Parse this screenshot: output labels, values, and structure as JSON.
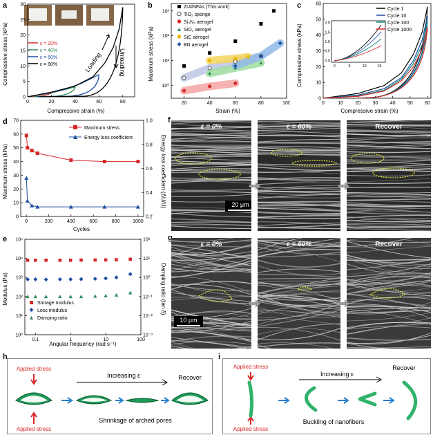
{
  "panels": {
    "a": {
      "letter": "a",
      "ylabel": "Compressive stress (kPa)",
      "xlabel": "Compressive strain (%)",
      "xticks": [
        "0",
        "20",
        "40",
        "60",
        "80"
      ],
      "yticks": [
        "0",
        "5",
        "10",
        "15",
        "20",
        "25",
        "30"
      ],
      "legend": [
        "ε = 20%",
        "ε = 40%",
        "ε = 60%",
        "ε = 80%"
      ],
      "loading_label": "Loading",
      "unloading_label": "Unloading"
    },
    "b": {
      "letter": "b",
      "ylabel": "Maximum stress (kPa)",
      "xlabel": "Strain (%)",
      "xticks": [
        "20",
        "40",
        "60",
        "80",
        "100"
      ],
      "yticks": [
        "10⁰",
        "10¹",
        "10²",
        "10³"
      ],
      "legend": [
        "ZrAlNFAs (This work)",
        "TiO₂ sponge",
        "Si₃N₄ aerogel",
        "SiO₂ aerogel",
        "SiC aerogel",
        "BN aerogel"
      ]
    },
    "c": {
      "letter": "c",
      "ylabel": "Compressive stress (kPa)",
      "xlabel": "Compressive strain (%)",
      "xticks": [
        "0",
        "10",
        "20",
        "30",
        "40",
        "50",
        "60"
      ],
      "yticks": [
        "0",
        "10",
        "20",
        "30",
        "40",
        "50",
        "60"
      ],
      "legend": [
        "Cycle 1",
        "Cycle 10",
        "Cycle 100",
        "Cycle 1000"
      ],
      "inset_xticks": [
        "0",
        "5",
        "10",
        "15"
      ],
      "inset_yticks": [
        "0.0",
        "0.5",
        "1.0",
        "1.5",
        "2.0"
      ]
    },
    "d": {
      "letter": "d",
      "ylabel": "Maximum stress (kPa)",
      "y2label": "Energy loss coefficient (ΔU/U)",
      "xlabel": "Cycles",
      "xticks": [
        "0",
        "200",
        "400",
        "600",
        "800",
        "1000"
      ],
      "yticks": [
        "0",
        "10",
        "20",
        "30",
        "40",
        "50",
        "60",
        "70"
      ],
      "y2ticks": [
        "0.2",
        "0.4",
        "0.6",
        "0.8",
        "1.0"
      ],
      "legend": [
        "Maximum stress",
        "Energy loss coefficient"
      ]
    },
    "e": {
      "letter": "e",
      "ylabel": "Modulus (Pa)",
      "y2label": "Damping ratio (tan δ)",
      "xlabel": "Angular frequency (rad s⁻¹)",
      "xticks": [
        "0.1",
        "1",
        "10",
        "100"
      ],
      "yticks": [
        "10⁰",
        "10¹",
        "10²",
        "10³",
        "10⁴",
        "10⁵"
      ],
      "y2ticks": [
        "10⁻³",
        "10⁻²",
        "10⁻¹",
        "10⁰",
        "10¹",
        "10²"
      ],
      "legend": [
        "Storage modulus",
        "Loss modulus",
        "Damping ratio"
      ]
    },
    "f": {
      "letter": "f",
      "labels": [
        "ε = 0%",
        "ε = 60%",
        "Recover"
      ],
      "scale": "20 μm"
    },
    "g": {
      "letter": "g",
      "labels": [
        "ε = 0%",
        "ε = 60%",
        "Recover"
      ],
      "scale": "10 μm"
    },
    "h": {
      "letter": "h",
      "applied_top": "Applied stress",
      "applied_bottom": "Applied stress",
      "increasing": "Increasing ε",
      "recover": "Recover",
      "caption": "Shrinkage of arched pores"
    },
    "i": {
      "letter": "i",
      "applied_top": "Applied stress",
      "applied_bottom": "Applied stress",
      "increasing": "Increasing ε",
      "recover": "Recover",
      "caption": "Buckling of nanofibers"
    }
  },
  "colors": {
    "red": "#d62728",
    "blue": "#1f4fa0",
    "green": "#2e8b57",
    "black": "#000000",
    "teal": "#138a80",
    "fiber_green": "#2fb36a"
  },
  "chart_data": [
    {
      "panel": "a",
      "type": "line",
      "xlabel": "Compressive strain (%)",
      "ylabel": "Compressive stress (kPa)",
      "xlim": [
        0,
        90
      ],
      "ylim": [
        0,
        30
      ],
      "series": [
        {
          "name": "ε = 20%",
          "x": [
            0,
            5,
            10,
            15,
            20
          ],
          "y": [
            0,
            0.3,
            0.6,
            0.9,
            1.2
          ]
        },
        {
          "name": "ε = 40%",
          "x": [
            0,
            10,
            20,
            30,
            40
          ],
          "y": [
            0,
            0.6,
            1.3,
            2.2,
            3.2
          ]
        },
        {
          "name": "ε = 60%",
          "x": [
            0,
            15,
            30,
            45,
            60
          ],
          "y": [
            0,
            1.0,
            2.3,
            4.3,
            7.2
          ]
        },
        {
          "name": "ε = 80%",
          "x": [
            0,
            20,
            40,
            55,
            65,
            72,
            77,
            80
          ],
          "y": [
            0,
            1.5,
            3.5,
            6.5,
            11,
            16,
            22,
            29
          ]
        }
      ]
    },
    {
      "panel": "b",
      "type": "scatter",
      "xlabel": "Strain (%)",
      "ylabel": "Maximum stress (kPa)",
      "xlim": [
        10,
        100
      ],
      "ylim_log": [
        0.3,
        2000
      ],
      "series": [
        {
          "name": "ZrAlNFAs (This work)",
          "x": [
            20,
            40,
            60,
            80,
            90
          ],
          "y": [
            6,
            20,
            60,
            300,
            1000
          ]
        },
        {
          "name": "TiO₂ sponge",
          "x": [
            20,
            40,
            60,
            80
          ],
          "y": [
            2,
            5,
            9,
            15
          ]
        },
        {
          "name": "Si₃N₄ aerogel",
          "x": [
            20,
            40,
            60
          ],
          "y": [
            0.6,
            0.9,
            1.2
          ]
        },
        {
          "name": "SiO₂ aerogel",
          "x": [
            40,
            60,
            80
          ],
          "y": [
            3,
            5,
            8
          ]
        },
        {
          "name": "SiC aerogel",
          "x": [
            40,
            60,
            70
          ],
          "y": [
            10,
            12,
            14
          ]
        },
        {
          "name": "BN aerogel",
          "x": [
            60,
            80,
            95
          ],
          "y": [
            6,
            15,
            50
          ]
        }
      ]
    },
    {
      "panel": "c",
      "type": "line",
      "xlabel": "Compressive strain (%)",
      "ylabel": "Compressive stress (kPa)",
      "xlim": [
        0,
        62
      ],
      "ylim": [
        0,
        60
      ],
      "series": [
        {
          "name": "Cycle 1",
          "x": [
            0,
            20,
            35,
            45,
            52,
            57,
            60
          ],
          "y": [
            0,
            3,
            8,
            16,
            28,
            42,
            58
          ]
        },
        {
          "name": "Cycle 10",
          "x": [
            0,
            20,
            35,
            45,
            52,
            57,
            60
          ],
          "y": [
            0,
            2,
            6,
            13,
            24,
            37,
            52
          ]
        },
        {
          "name": "Cycle 100",
          "x": [
            0,
            20,
            35,
            45,
            52,
            57,
            60
          ],
          "y": [
            0,
            1.5,
            5,
            12,
            22,
            34,
            49
          ]
        },
        {
          "name": "Cycle 1000",
          "x": [
            0,
            20,
            35,
            45,
            52,
            57,
            60
          ],
          "y": [
            0,
            1.2,
            4.5,
            11,
            20,
            31,
            45
          ]
        }
      ]
    },
    {
      "panel": "d",
      "type": "line",
      "xlabel": "Cycles",
      "ylabel": "Maximum stress (kPa)",
      "y2label": "Energy loss coefficient (ΔU/U)",
      "xlim": [
        -50,
        1050
      ],
      "ylim": [
        0,
        70
      ],
      "y2lim": [
        0.2,
        1.0
      ],
      "series": [
        {
          "name": "Maximum stress",
          "axis": "left",
          "x": [
            1,
            10,
            50,
            100,
            400,
            700,
            1000
          ],
          "y": [
            59,
            50,
            48,
            46,
            41,
            40,
            40
          ]
        },
        {
          "name": "Energy loss coefficient",
          "axis": "right",
          "x": [
            1,
            10,
            50,
            100,
            400,
            700,
            1000
          ],
          "y": [
            0.52,
            0.33,
            0.29,
            0.28,
            0.28,
            0.28,
            0.28
          ]
        }
      ]
    },
    {
      "panel": "e",
      "type": "scatter",
      "xlabel": "Angular frequency (rad s⁻¹)",
      "ylabel": "Modulus (Pa)",
      "y2label": "Damping ratio (tan δ)",
      "xscale": "log",
      "xlim": [
        0.05,
        100
      ],
      "ylim_log": [
        1,
        100000
      ],
      "series": [
        {
          "name": "Storage modulus",
          "x": [
            0.06,
            0.1,
            0.2,
            0.5,
            1,
            2,
            5,
            10,
            20,
            50
          ],
          "y": [
            8000,
            8000,
            8000,
            8000,
            8000,
            8100,
            8200,
            8300,
            8500,
            9000
          ]
        },
        {
          "name": "Loss modulus",
          "x": [
            0.06,
            0.1,
            0.2,
            0.5,
            1,
            2,
            5,
            10,
            20,
            50
          ],
          "y": [
            800,
            800,
            780,
            800,
            800,
            820,
            850,
            900,
            1000,
            1500
          ]
        },
        {
          "name": "Damping ratio",
          "x": [
            0.06,
            0.1,
            0.2,
            0.5,
            1,
            2,
            5,
            10,
            20,
            50
          ],
          "y": [
            100,
            100,
            100,
            100,
            100,
            100,
            105,
            110,
            120,
            160
          ]
        }
      ]
    }
  ]
}
